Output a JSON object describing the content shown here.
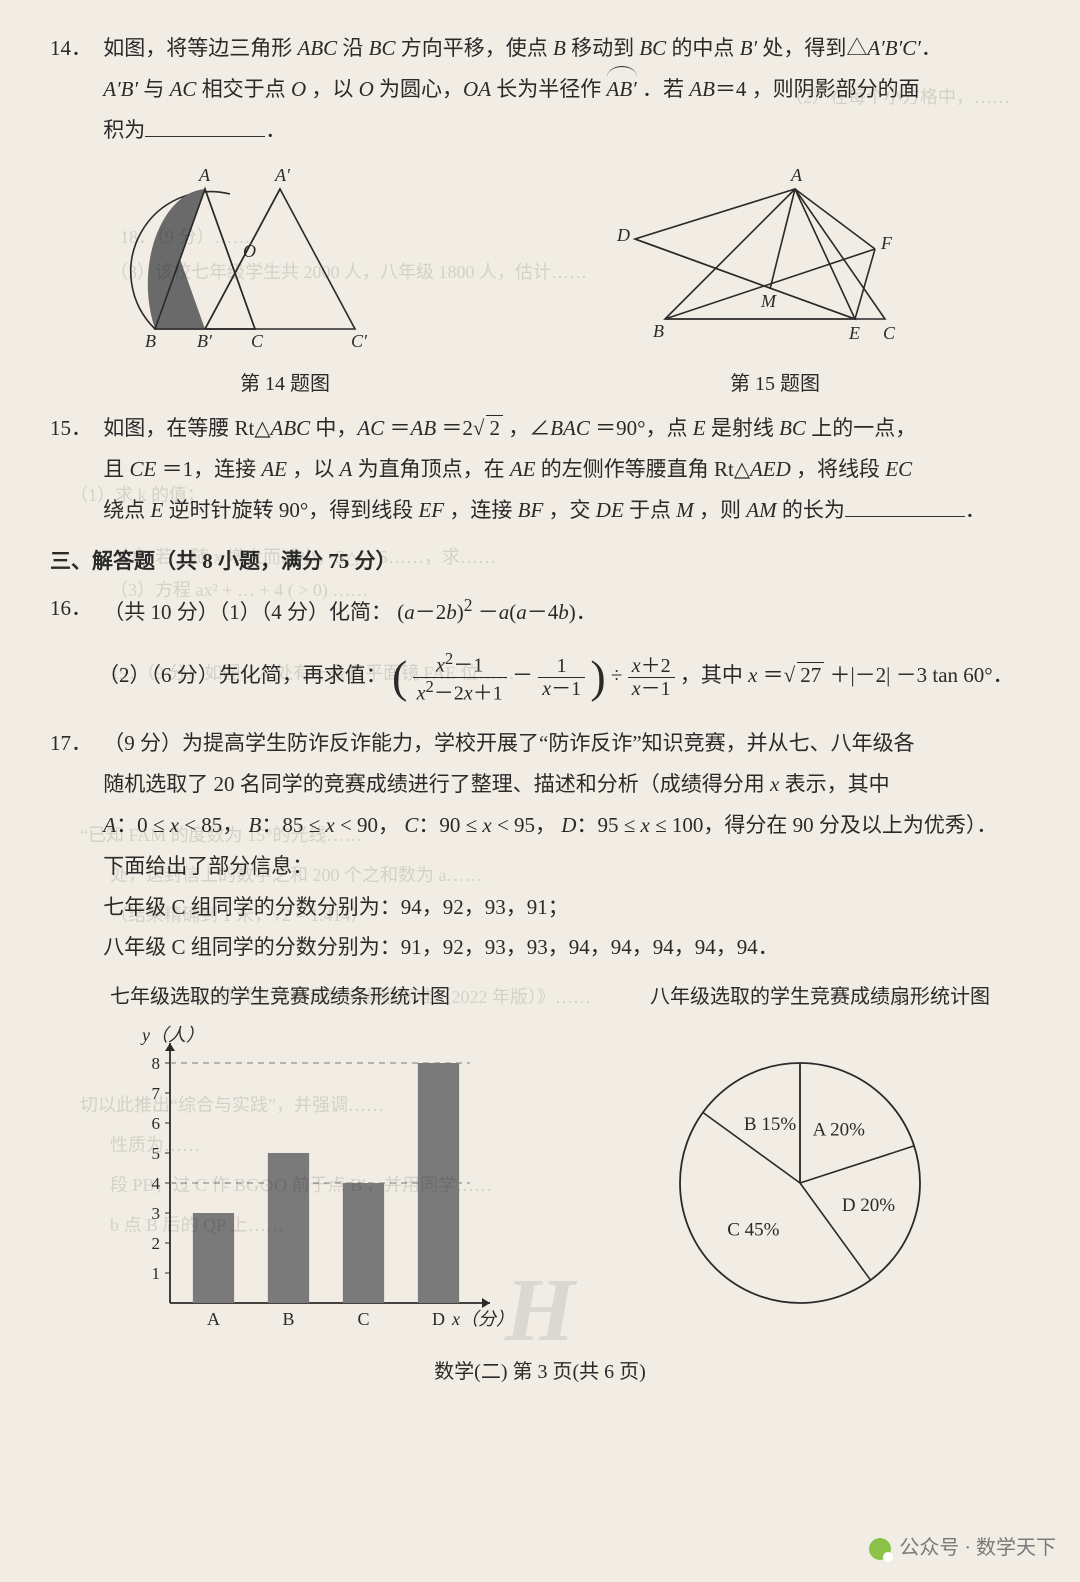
{
  "q14": {
    "num": "14．",
    "line1_a": "如图，将等边三角形 ",
    "abc": "ABC",
    "line1_b": " 沿 ",
    "bc": "BC",
    "line1_c": " 方向平移，使点 ",
    "B": "B",
    "line1_d": " 移动到 ",
    "line1_e": " 的中点 ",
    "Bp": "B′",
    "line1_f": "处，得到△",
    "ApBpCp": "A′B′C′",
    "dot": "．",
    "line2_a": "A′B′",
    "line2_b": " 与 ",
    "AC": "AC",
    "line2_c": " 相交于点 ",
    "O": "O",
    "line2_d": "，以 ",
    "line2_e": " 为圆心，",
    "OA": "OA",
    "line2_f": " 长为半径作 ",
    "arc": "AB′",
    "line2_g": "．若 ",
    "AB": "AB",
    "eq4": "＝4",
    "line2_h": "，则阴影部分的面",
    "line3_a": "积为",
    "fig14_cap": "第 14 题图",
    "fig14_labels": {
      "A": "A",
      "Ap": "A′",
      "O": "O",
      "B": "B",
      "Bp": "B′",
      "C": "C",
      "Cp": "C′"
    },
    "fig14_colors": {
      "stroke": "#2a2a2a",
      "fill": "#6a6a6a"
    }
  },
  "q15": {
    "num": "15．",
    "line1_a": "如图，在等腰 Rt△",
    "ABC": "ABC",
    "line1_b": " 中，",
    "AC": "AC",
    "eq1": "＝",
    "AB": "AB",
    "eq2": "＝2",
    "rt2": "2",
    "comma1": "，∠",
    "BAC": "BAC",
    "deg90": "＝90°，点 ",
    "E": "E",
    "line1_c": " 是射线 ",
    "BC": "BC",
    "line1_d": " 上的一点，",
    "line2_a": "且 ",
    "CE": "CE",
    "eq3": "＝1，连接 ",
    "AE": "AE",
    "line2_b": "，以 ",
    "A": "A",
    "line2_c": " 为直角顶点，在 ",
    "line2_d": " 的左侧作等腰直角 Rt△",
    "AED": "AED",
    "line2_e": "，将线段 ",
    "EC": "EC",
    "line3_a": "绕点 ",
    "line3_b": " 逆时针旋转 90°，得到线段 ",
    "EF": "EF",
    "line3_c": "，连接 ",
    "BF": "BF",
    "line3_d": "，交 ",
    "DE": "DE",
    "line3_e": " 于点 ",
    "M": "M",
    "line3_f": "，则 ",
    "AM": "AM",
    "line3_g": " 的长为",
    "fig15_cap": "第 15 题图",
    "fig15_labels": {
      "A": "A",
      "D": "D",
      "F": "F",
      "B": "B",
      "M": "M",
      "E": "E",
      "C": "C"
    }
  },
  "section3": "三、解答题（共 8 小题，满分 75 分）",
  "q16": {
    "num": "16．",
    "line1": "（共 10 分）（1）（4 分）化简：",
    "expr1_a": "(",
    "expr1_b": "a",
    "expr1_c": "－2",
    "expr1_d": "b",
    "expr1_e": ")",
    "sq": "2",
    "minus": "－",
    "a2": "a",
    "lp": "(",
    "am4b_a": "a",
    "am4b_b": "－4",
    "am4b_c": "b",
    "rp": ")",
    "dot": "．",
    "sub2_a": "（2）（6 分）先化简，再求值：",
    "f1n_a": "x",
    "f1n_b": "2",
    "f1n_c": "－1",
    "f1d_a": "x",
    "f1d_b": "2",
    "f1d_c": "－2",
    "f1d_d": "x",
    "f1d_e": "＋1",
    "minus2": "－",
    "f2n": "1",
    "f2d_a": "x",
    "f2d_b": "－1",
    "div": "÷",
    "f3n_a": "x",
    "f3n_b": "＋2",
    "f3d_a": "x",
    "f3d_b": "－1",
    "where": "，其中 ",
    "x": "x",
    "eqx": "＝",
    "rt27": "27",
    "plus": "＋",
    "abs2": "|－2|",
    "minus3": "－3 tan 60°．"
  },
  "q17": {
    "num": "17．",
    "l1": "（9 分）为提高学生防诈反诈能力，学校开展了“防诈反诈”知识竞赛，并从七、八年级各",
    "l2_a": "随机选取了 20 名同学的竞赛成绩进行了整理、描述和分析（成绩得分用 ",
    "x": "x",
    "l2_b": " 表示，其中",
    "l3_a": "A",
    "l3_b": "：0 ≤ ",
    "l3_c": " < 85，",
    "l3_B": "B",
    "l3_d": "：85 ≤ ",
    "l3_e": " < 90，",
    "l3_C": "C",
    "l3_f": "：90 ≤ ",
    "l3_g": " < 95，",
    "l3_D": "D",
    "l3_h": "：95 ≤ ",
    "l3_i": " ≤ 100，得分在 90 分及以上为优秀）．",
    "l4": "下面给出了部分信息：",
    "l5": "七年级 C 组同学的分数分别为：94，92，93，91；",
    "l6": "八年级 C 组同学的分数分别为：91，92，93，93，94，94，94，94，94．",
    "bar_title": "七年级选取的学生竞赛成绩条形统计图",
    "pie_title": "八年级选取的学生竞赛成绩扇形统计图",
    "bar": {
      "ylabel": "y（人）",
      "xlabel": "x（分）",
      "ymax": 8,
      "yticks": [
        1,
        2,
        3,
        4,
        5,
        6,
        7,
        8
      ],
      "dashed": [
        4,
        8
      ],
      "categories": [
        "A",
        "B",
        "C",
        "D"
      ],
      "values": [
        3,
        5,
        4,
        8
      ],
      "bar_color": "#7a7a7a",
      "axis_color": "#2a2a2a",
      "dash_color": "#7a7a7a"
    },
    "pie": {
      "slices": [
        {
          "label": "A 20%",
          "pct": 20,
          "start": 270
        },
        {
          "label": "D  20%",
          "pct": 20,
          "start": 342
        },
        {
          "label": "C 45%",
          "pct": 45,
          "start": 54
        },
        {
          "label": "B 15%",
          "pct": 15,
          "start": 216
        }
      ],
      "stroke": "#2a2a2a",
      "bg": "#f1ede4"
    }
  },
  "footer": {
    "text": "数学(二)  第 3 页(共 6 页)"
  },
  "watermark": "H",
  "credit": "公众号 · 数学天下",
  "ghost_lines": [
    "（2）在每个小方格中，……",
    "（3）该校七年级学生共 2000 人，八年级 1800 人，估计……",
    "18．（9 分）……",
    "（1）求 k 的值；",
    "（2）若 y 随 x 增大而减小，S△ = S……，求……",
    "（3）方程 ax² + … + 4 (  > 0) ……",
    "19．（9 分）如图，A 处有一条直平面镜 FAE  位……",
    "“已知 FAM 的度数为 15°的光线……",
    "处，这封信上的数字之和 200 个之和数为 a……",
    "（结果精确到 1 米，√2 = 1.414）",
    "20．（9 分）《义务教育数学课程标准（2022 年版）》……",
    "切以此推出“综合与实践”，并强调……",
    "性质为……",
    "段 PB，过 C 作 BG⊙O 前于点 B′，并用同学……",
    "b 点 B 后的 QP 上……"
  ]
}
